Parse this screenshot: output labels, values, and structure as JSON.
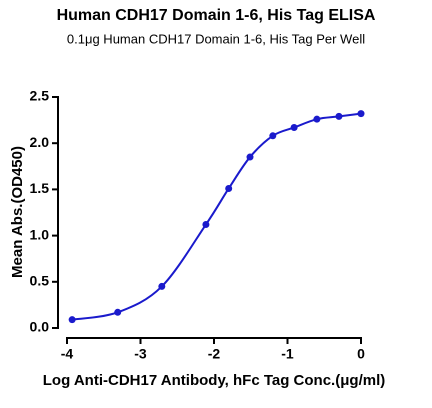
{
  "chart_data": {
    "type": "line",
    "title": "Human CDH17 Domain 1-6, His Tag ELISA",
    "subtitle": "0.1μg Human CDH17 Domain 1-6, His Tag Per Well",
    "x_label": "Log Anti-CDH17 Antibody, hFc Tag Conc.(μg/ml)",
    "y_label": "Mean Abs.(OD450)",
    "series": [
      {
        "color": "#1a1acc",
        "x": [
          -3.93,
          -3.31,
          -2.71,
          -2.11,
          -1.8,
          -1.51,
          -1.2,
          -0.91,
          -0.6,
          -0.3,
          0
        ],
        "values": [
          0.09,
          0.17,
          0.45,
          1.12,
          1.51,
          1.85,
          2.08,
          2.17,
          2.26,
          2.29,
          2.32
        ]
      }
    ],
    "xlim": [
      -4,
      0
    ],
    "xticks": [
      -4,
      -3,
      -2,
      -1,
      0
    ],
    "ylim": [
      0,
      2.5
    ],
    "yticks": [
      {
        "value": 0,
        "label": "0.0"
      },
      0.5,
      {
        "value": 1,
        "label": "1.0"
      },
      1.5,
      {
        "value": 2,
        "label": "2.0"
      },
      2.5
    ],
    "grid": false
  }
}
